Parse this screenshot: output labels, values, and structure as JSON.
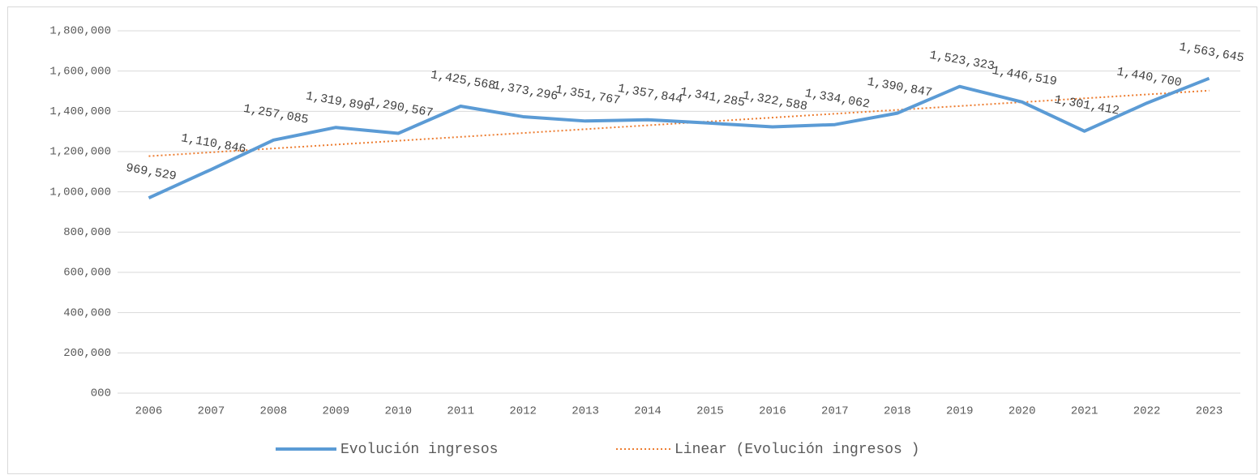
{
  "chart_data": {
    "type": "line",
    "categories": [
      "2006",
      "2007",
      "2008",
      "2009",
      "2010",
      "2011",
      "2012",
      "2013",
      "2014",
      "2015",
      "2016",
      "2017",
      "2018",
      "2019",
      "2020",
      "2021",
      "2022",
      "2023"
    ],
    "series": [
      {
        "name": "Evolución ingresos",
        "color": "#5b9bd5",
        "values": [
          969529,
          1110846,
          1257085,
          1319896,
          1290567,
          1425568,
          1373296,
          1351767,
          1357844,
          1341285,
          1322588,
          1334062,
          1390847,
          1523323,
          1446519,
          1301412,
          1440700,
          1563645
        ],
        "value_labels": [
          "969,529",
          "1,110,846",
          "1,257,085",
          "1,319,896",
          "1,290,567",
          "1,425,568",
          "1,373,296",
          "1,351,767",
          "1,357,844",
          "1,341,285",
          "1,322,588",
          "1,334,062",
          "1,390,847",
          "1,523,323",
          "1,446,519",
          "1,301,412",
          "1,440,700",
          "1,563,645"
        ]
      }
    ],
    "trendline": {
      "name": "Linear (Evolución ingresos )",
      "color": "#ed7d31",
      "kind": "linear"
    },
    "ylim": [
      0,
      1800000
    ],
    "yticks": [
      {
        "value": 0,
        "label": "000"
      },
      {
        "value": 200000,
        "label": "200,000"
      },
      {
        "value": 400000,
        "label": "400,000"
      },
      {
        "value": 600000,
        "label": "600,000"
      },
      {
        "value": 800000,
        "label": "800,000"
      },
      {
        "value": 1000000,
        "label": "1,000,000"
      },
      {
        "value": 1200000,
        "label": "1,200,000"
      },
      {
        "value": 1400000,
        "label": "1,400,000"
      },
      {
        "value": 1600000,
        "label": "1,600,000"
      },
      {
        "value": 1800000,
        "label": "1,800,000"
      }
    ],
    "grid": true,
    "legend": "bottom"
  }
}
